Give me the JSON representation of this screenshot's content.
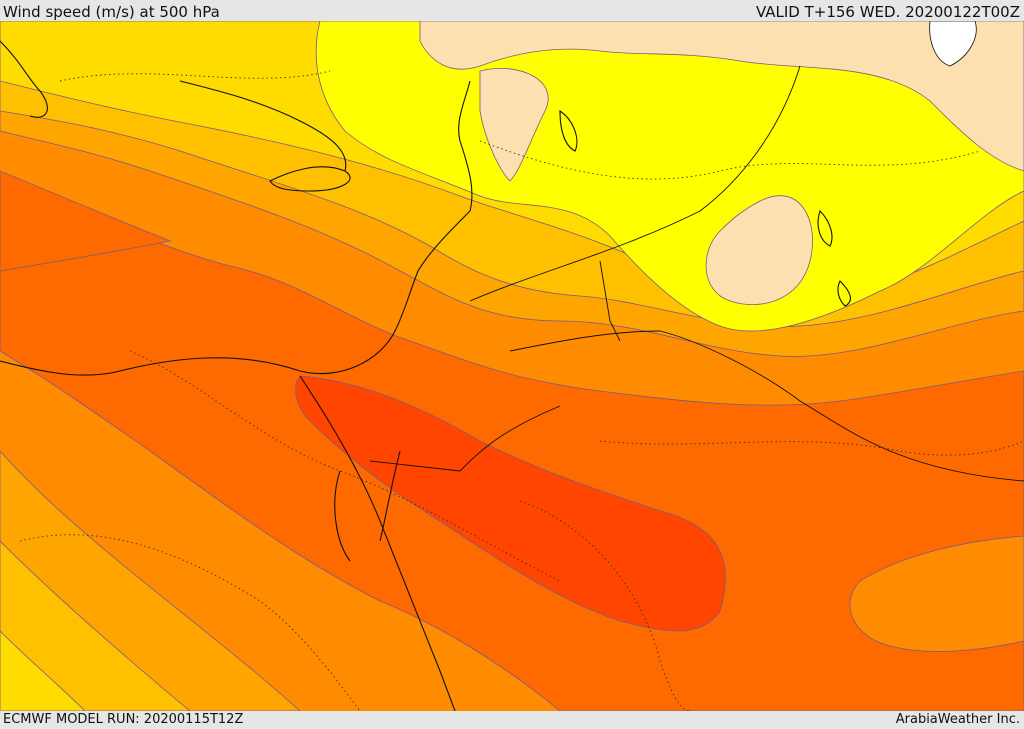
{
  "header": {
    "title": "Wind speed (m/s) at 500 hPa",
    "valid_time": "VALID T+156 WED. 20200122T00Z"
  },
  "footer": {
    "model_run": "ECMWF MODEL RUN: 20200115T12Z",
    "credit": "ArabiaWeather Inc."
  },
  "colors": {
    "very_light": "#fde0b0",
    "light_yellow": "#ffff00",
    "yellow": "#ffdc00",
    "gold": "#ffc000",
    "orange_light": "#ffa500",
    "orange": "#ff8c00",
    "orange_dark": "#ff6a00",
    "red_orange": "#ff4500",
    "coast": "#111111",
    "contour": "#7a5a8a"
  }
}
